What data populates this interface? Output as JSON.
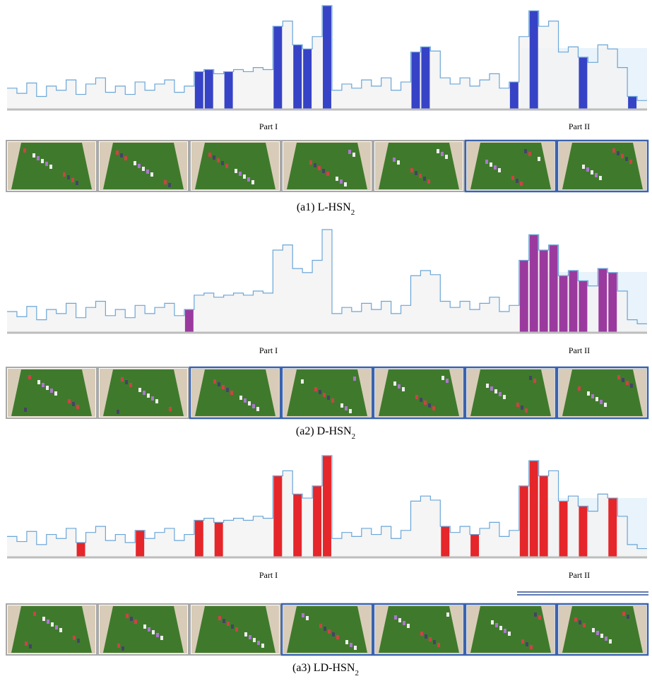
{
  "signal": [
    20,
    15,
    25,
    12,
    22,
    18,
    28,
    14,
    24,
    30,
    16,
    22,
    14,
    26,
    18,
    24,
    28,
    16,
    22,
    36,
    38,
    34,
    36,
    38,
    36,
    40,
    38,
    80,
    85,
    62,
    58,
    70,
    100,
    18,
    24,
    20,
    28,
    22,
    30,
    18,
    26,
    55,
    60,
    56,
    30,
    24,
    30,
    22,
    28,
    34,
    20,
    26,
    70,
    95,
    80,
    85,
    55,
    60,
    50,
    45,
    62,
    58,
    40,
    12,
    8
  ],
  "panels": [
    {
      "part_labels": [
        "Part I",
        "Part II"
      ],
      "caption": "(a1) L-HSN",
      "caption_sub": "2",
      "color": "#3643c6",
      "highlight": [
        19,
        20,
        22,
        27,
        29,
        30,
        32,
        41,
        42,
        51,
        53,
        58,
        63
      ],
      "selected_frames": [
        5,
        6
      ]
    },
    {
      "part_labels": [
        "Part I",
        "Part II"
      ],
      "caption": "(a2) D-HSN",
      "caption_sub": "2",
      "color": "#9b3a9e",
      "highlight": [
        18,
        52,
        53,
        54,
        55,
        56,
        57,
        58,
        60,
        61
      ],
      "selected_frames": [
        2,
        3,
        4,
        5,
        6
      ]
    },
    {
      "part_labels": [
        "Part I",
        "Part II"
      ],
      "caption": "(a3) LD-HSN",
      "caption_sub": "2",
      "color": "#e5262a",
      "highlight": [
        7,
        13,
        19,
        21,
        27,
        29,
        31,
        32,
        44,
        47,
        52,
        53,
        54,
        56,
        58,
        61
      ],
      "selected_frames": [
        3,
        4,
        5,
        6
      ]
    }
  ]
}
